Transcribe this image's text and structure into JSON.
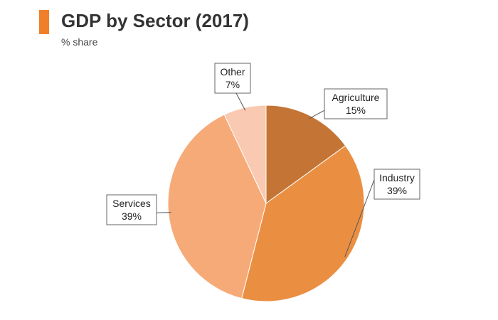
{
  "header": {
    "title": "GDP by Sector (2017)",
    "subtitle": "% share",
    "accent_color": "#f07f2a"
  },
  "chart_data": {
    "type": "pie",
    "title": "GDP by Sector (2017)",
    "subtitle": "% share",
    "start_angle_deg": 0,
    "direction": "clockwise",
    "slices": [
      {
        "label": "Agriculture",
        "value": 15,
        "value_label": "15%",
        "color": "#c47535"
      },
      {
        "label": "Industry",
        "value": 39,
        "value_label": "39%",
        "color": "#ea8f42"
      },
      {
        "label": "Services",
        "value": 39,
        "value_label": "39%",
        "color": "#f6aa77"
      },
      {
        "label": "Other",
        "value": 7,
        "value_label": "7%",
        "color": "#f9c9b1"
      }
    ]
  }
}
